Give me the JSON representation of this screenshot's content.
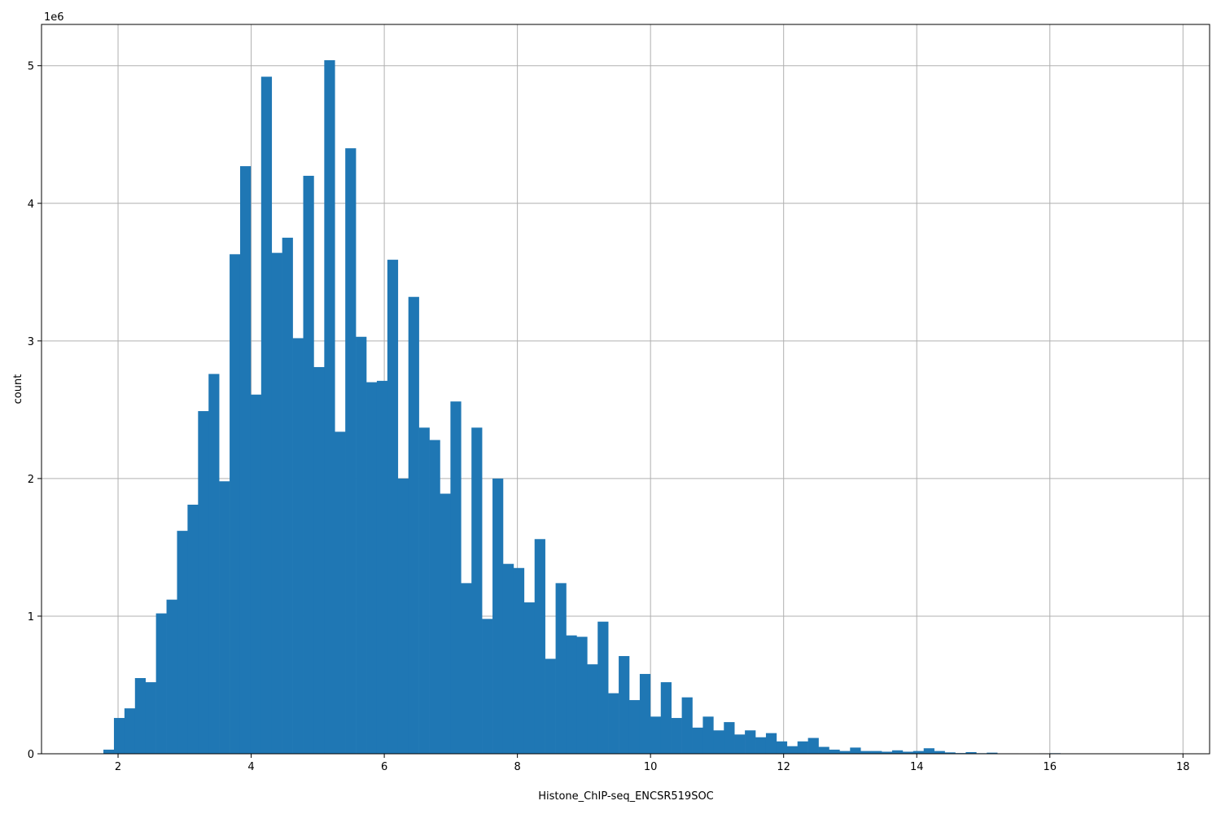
{
  "chart_data": {
    "type": "bar",
    "histogram": true,
    "xlabel": "Histone_ChIP-seq_ENCSR519SOC",
    "ylabel": "count",
    "y_offset_label": "1e6",
    "y_multiplier": 1000000,
    "xlim": [
      0.85,
      18.4
    ],
    "ylim": [
      0,
      5.3
    ],
    "xticks": [
      2,
      4,
      6,
      8,
      10,
      12,
      14,
      16,
      18
    ],
    "yticks": [
      0,
      1,
      2,
      3,
      4,
      5
    ],
    "grid": true,
    "color": "#1f77b4",
    "bin_start": 1.78,
    "bin_width": 0.158,
    "values": [
      0.03,
      0.26,
      0.33,
      0.55,
      0.52,
      1.02,
      1.12,
      1.62,
      1.81,
      2.49,
      2.76,
      1.98,
      3.63,
      4.27,
      2.61,
      4.92,
      3.64,
      3.75,
      3.02,
      4.2,
      2.81,
      5.04,
      2.34,
      4.4,
      3.03,
      2.7,
      2.71,
      3.59,
      2.0,
      3.32,
      2.37,
      2.28,
      1.89,
      2.56,
      1.24,
      2.37,
      0.98,
      2.0,
      1.38,
      1.35,
      1.1,
      1.56,
      0.69,
      1.24,
      0.86,
      0.85,
      0.65,
      0.96,
      0.44,
      0.71,
      0.39,
      0.58,
      0.27,
      0.52,
      0.26,
      0.41,
      0.19,
      0.27,
      0.17,
      0.23,
      0.14,
      0.17,
      0.12,
      0.15,
      0.09,
      0.055,
      0.09,
      0.115,
      0.05,
      0.03,
      0.02,
      0.045,
      0.02,
      0.02,
      0.015,
      0.025,
      0.015,
      0.02,
      0.04,
      0.02,
      0.01,
      0.005,
      0.012,
      0.004,
      0.008,
      0.003,
      0.003,
      0.002,
      0.002,
      0.003,
      0.004
    ]
  }
}
